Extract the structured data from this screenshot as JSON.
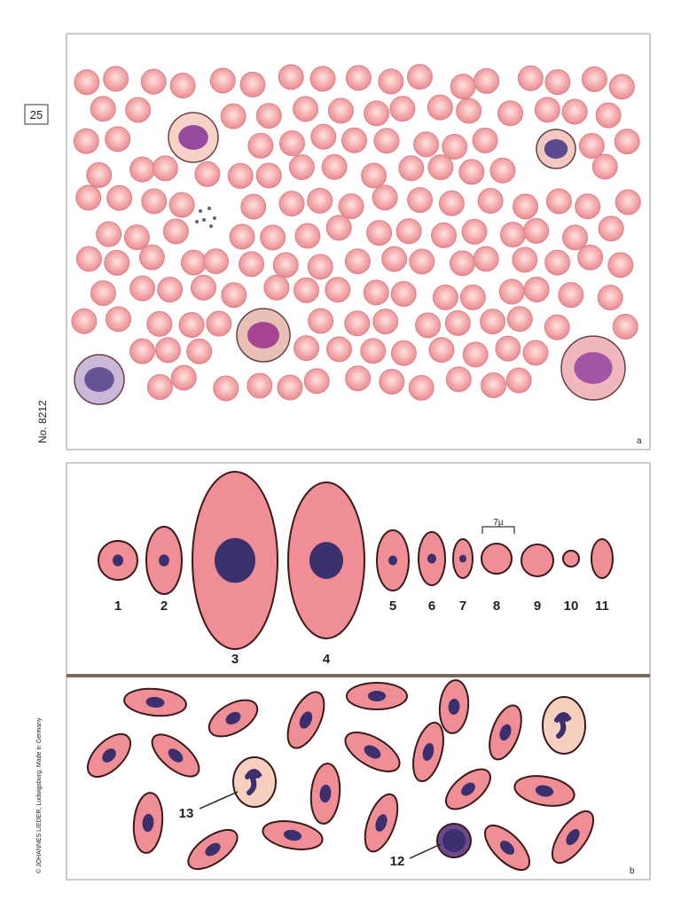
{
  "sidebar": {
    "plate_number": "25",
    "catalog_number": "No. 8212",
    "copyright": "© JOHANNES LIEDER, Ludwigsburg, Made in Germany"
  },
  "panel_a": {
    "label": "a"
  },
  "panel_b": {
    "label": "b",
    "scale_label": "7µ",
    "cell_labels": [
      "1",
      "2",
      "3",
      "4",
      "5",
      "6",
      "7",
      "8",
      "9",
      "10",
      "11"
    ],
    "pointer_labels": [
      "12",
      "13"
    ]
  }
}
